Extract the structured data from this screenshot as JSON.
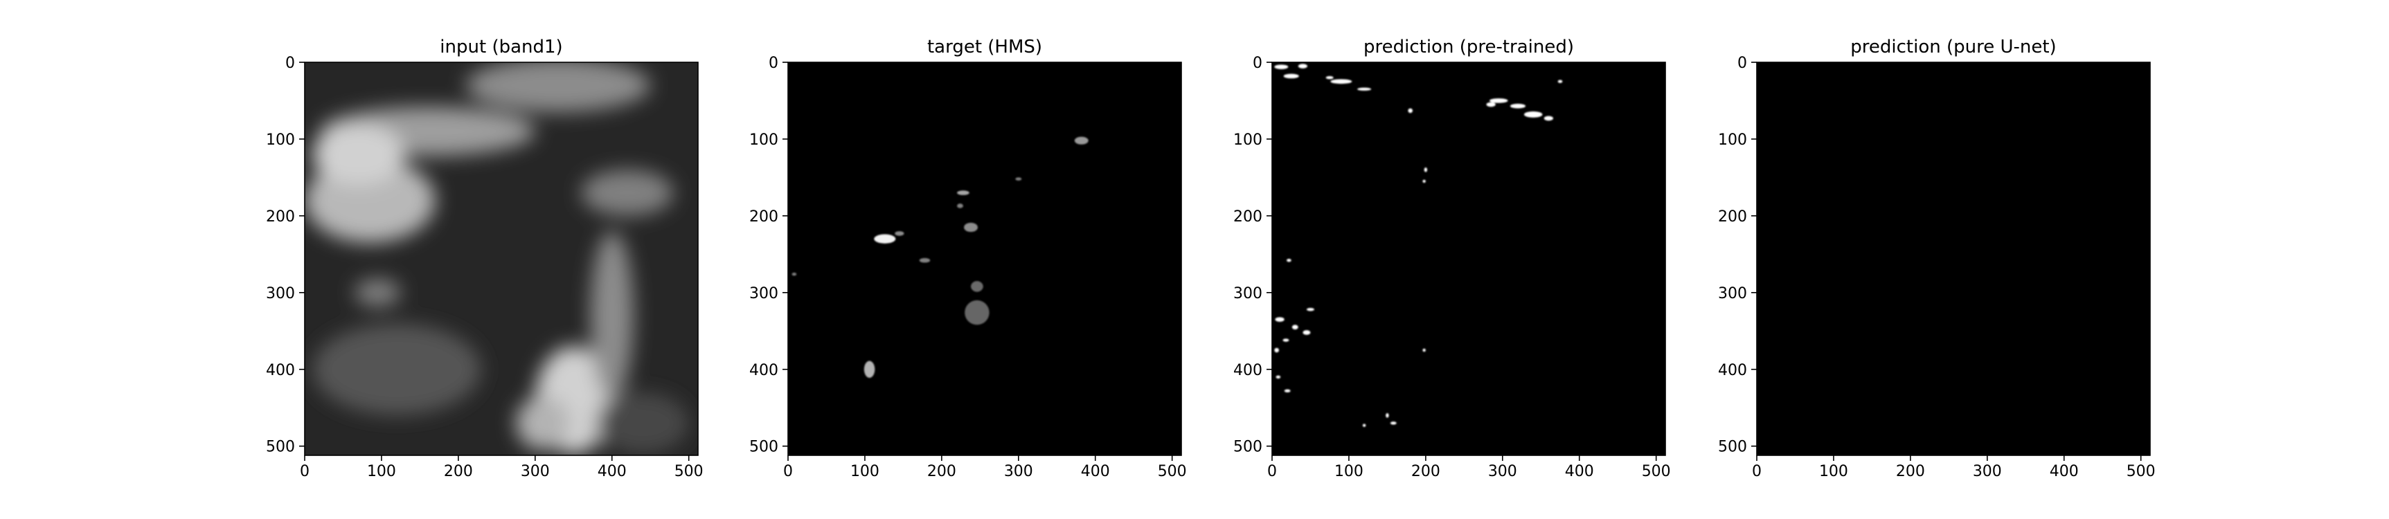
{
  "chart_data": [
    {
      "type": "image",
      "title": "input (band1)",
      "content": "grayscale satellite image",
      "xlim": [
        0,
        512
      ],
      "ylim": [
        512,
        0
      ],
      "xticks": [
        0,
        100,
        200,
        300,
        400,
        500
      ],
      "yticks": [
        0,
        100,
        200,
        300,
        400,
        500
      ],
      "blobs": [
        {
          "x": 85,
          "y": 180,
          "rx": 85,
          "ry": 55,
          "value": 0.72
        },
        {
          "x": 160,
          "y": 90,
          "rx": 140,
          "ry": 32,
          "value": 0.62
        },
        {
          "x": 70,
          "y": 120,
          "rx": 60,
          "ry": 40,
          "value": 0.82
        },
        {
          "x": 330,
          "y": 30,
          "rx": 120,
          "ry": 35,
          "value": 0.55
        },
        {
          "x": 420,
          "y": 170,
          "rx": 60,
          "ry": 30,
          "value": 0.5
        },
        {
          "x": 350,
          "y": 440,
          "rx": 50,
          "ry": 70,
          "value": 0.82
        },
        {
          "x": 310,
          "y": 470,
          "rx": 35,
          "ry": 35,
          "value": 0.7
        },
        {
          "x": 400,
          "y": 330,
          "rx": 28,
          "ry": 110,
          "value": 0.55
        },
        {
          "x": 95,
          "y": 300,
          "rx": 30,
          "ry": 18,
          "value": 0.5
        },
        {
          "x": 120,
          "y": 400,
          "rx": 110,
          "ry": 60,
          "value": 0.33
        },
        {
          "x": 440,
          "y": 470,
          "rx": 60,
          "ry": 40,
          "value": 0.28
        }
      ]
    },
    {
      "type": "image",
      "title": "target (HMS)",
      "content": "smoke mask",
      "xlim": [
        0,
        512
      ],
      "ylim": [
        512,
        0
      ],
      "xticks": [
        0,
        100,
        200,
        300,
        400,
        500
      ],
      "yticks": [
        0,
        100,
        200,
        300,
        400,
        500
      ],
      "blobs": [
        {
          "x": 382,
          "y": 102,
          "rx": 9,
          "ry": 5,
          "value": 0.6
        },
        {
          "x": 300,
          "y": 152,
          "rx": 4,
          "ry": 2,
          "value": 0.5
        },
        {
          "x": 228,
          "y": 170,
          "rx": 8,
          "ry": 3,
          "value": 0.65
        },
        {
          "x": 224,
          "y": 187,
          "rx": 4,
          "ry": 3,
          "value": 0.5
        },
        {
          "x": 238,
          "y": 215,
          "rx": 9,
          "ry": 6,
          "value": 0.55
        },
        {
          "x": 126,
          "y": 230,
          "rx": 14,
          "ry": 6,
          "value": 0.95
        },
        {
          "x": 145,
          "y": 223,
          "rx": 6,
          "ry": 3,
          "value": 0.55
        },
        {
          "x": 178,
          "y": 258,
          "rx": 7,
          "ry": 3,
          "value": 0.5
        },
        {
          "x": 8,
          "y": 276,
          "rx": 3,
          "ry": 2,
          "value": 0.5
        },
        {
          "x": 246,
          "y": 292,
          "rx": 8,
          "ry": 7,
          "value": 0.42
        },
        {
          "x": 246,
          "y": 326,
          "rx": 16,
          "ry": 16,
          "value": 0.4
        },
        {
          "x": 106,
          "y": 400,
          "rx": 7,
          "ry": 11,
          "value": 0.7
        }
      ]
    },
    {
      "type": "image",
      "title": "prediction (pre-trained)",
      "content": "binary prediction",
      "xlim": [
        0,
        512
      ],
      "ylim": [
        512,
        0
      ],
      "xticks": [
        0,
        100,
        200,
        300,
        400,
        500
      ],
      "yticks": [
        0,
        100,
        200,
        300,
        400,
        500
      ],
      "blobs": [
        {
          "x": 12,
          "y": 6,
          "rx": 9,
          "ry": 3,
          "value": 1
        },
        {
          "x": 40,
          "y": 5,
          "rx": 6,
          "ry": 3,
          "value": 1
        },
        {
          "x": 25,
          "y": 18,
          "rx": 10,
          "ry": 3,
          "value": 1
        },
        {
          "x": 90,
          "y": 25,
          "rx": 14,
          "ry": 3,
          "value": 1
        },
        {
          "x": 120,
          "y": 35,
          "rx": 9,
          "ry": 2,
          "value": 1
        },
        {
          "x": 75,
          "y": 20,
          "rx": 5,
          "ry": 2,
          "value": 1
        },
        {
          "x": 180,
          "y": 63,
          "rx": 3,
          "ry": 3,
          "value": 1
        },
        {
          "x": 295,
          "y": 50,
          "rx": 12,
          "ry": 3,
          "value": 1
        },
        {
          "x": 320,
          "y": 57,
          "rx": 10,
          "ry": 3,
          "value": 1
        },
        {
          "x": 340,
          "y": 68,
          "rx": 12,
          "ry": 4,
          "value": 1
        },
        {
          "x": 360,
          "y": 73,
          "rx": 6,
          "ry": 3,
          "value": 1
        },
        {
          "x": 285,
          "y": 55,
          "rx": 6,
          "ry": 3,
          "value": 1
        },
        {
          "x": 375,
          "y": 25,
          "rx": 3,
          "ry": 2,
          "value": 1
        },
        {
          "x": 200,
          "y": 140,
          "rx": 2,
          "ry": 3,
          "value": 1
        },
        {
          "x": 198,
          "y": 155,
          "rx": 2,
          "ry": 2,
          "value": 1
        },
        {
          "x": 22,
          "y": 258,
          "rx": 3,
          "ry": 2,
          "value": 1
        },
        {
          "x": 10,
          "y": 335,
          "rx": 6,
          "ry": 3,
          "value": 1
        },
        {
          "x": 50,
          "y": 322,
          "rx": 5,
          "ry": 2,
          "value": 1
        },
        {
          "x": 30,
          "y": 345,
          "rx": 4,
          "ry": 3,
          "value": 1
        },
        {
          "x": 45,
          "y": 352,
          "rx": 5,
          "ry": 3,
          "value": 1
        },
        {
          "x": 18,
          "y": 362,
          "rx": 4,
          "ry": 2,
          "value": 1
        },
        {
          "x": 6,
          "y": 375,
          "rx": 3,
          "ry": 3,
          "value": 1
        },
        {
          "x": 8,
          "y": 410,
          "rx": 3,
          "ry": 2,
          "value": 1
        },
        {
          "x": 20,
          "y": 428,
          "rx": 4,
          "ry": 2,
          "value": 1
        },
        {
          "x": 198,
          "y": 375,
          "rx": 2,
          "ry": 2,
          "value": 1
        },
        {
          "x": 150,
          "y": 460,
          "rx": 2,
          "ry": 3,
          "value": 1
        },
        {
          "x": 158,
          "y": 470,
          "rx": 4,
          "ry": 2,
          "value": 1
        },
        {
          "x": 120,
          "y": 473,
          "rx": 2,
          "ry": 2,
          "value": 1
        }
      ]
    },
    {
      "type": "image",
      "title": "prediction (pure U-net)",
      "content": "empty prediction",
      "xlim": [
        0,
        512
      ],
      "ylim": [
        512,
        0
      ],
      "xticks": [
        0,
        100,
        200,
        300,
        400,
        500
      ],
      "yticks": [
        0,
        100,
        200,
        300,
        400,
        500
      ],
      "blobs": []
    }
  ]
}
